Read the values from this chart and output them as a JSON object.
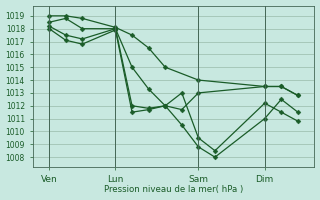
{
  "background_color": "#c8e8e0",
  "grid_color": "#99bbaa",
  "line_color": "#1a5c28",
  "xlabel": "Pression niveau de la mer( hPa )",
  "ylim": [
    1007.2,
    1019.8
  ],
  "yticks": [
    1008,
    1009,
    1010,
    1011,
    1012,
    1013,
    1014,
    1015,
    1016,
    1017,
    1018,
    1019
  ],
  "xtick_labels": [
    "Ven",
    "Lun",
    "Sam",
    "Dim"
  ],
  "xtick_positions": [
    1,
    5,
    10,
    14
  ],
  "vline_positions": [
    1,
    5,
    10,
    14
  ],
  "series": [
    {
      "x": [
        1,
        2,
        3,
        5,
        6,
        7,
        8,
        10,
        14,
        15,
        16
      ],
      "y": [
        1019.0,
        1019.0,
        1018.8,
        1018.1,
        1017.5,
        1016.5,
        1015.0,
        1014.0,
        1013.5,
        1013.5,
        1012.8
      ]
    },
    {
      "x": [
        1,
        2,
        3,
        5,
        6,
        7,
        8,
        9,
        10,
        14,
        15,
        16
      ],
      "y": [
        1018.5,
        1018.8,
        1018.0,
        1018.0,
        1015.0,
        1013.3,
        1012.0,
        1011.7,
        1013.0,
        1013.5,
        1013.5,
        1012.8
      ]
    },
    {
      "x": [
        1,
        2,
        3,
        5,
        6,
        7,
        8,
        9,
        10,
        11,
        14,
        15,
        16
      ],
      "y": [
        1018.2,
        1017.5,
        1017.2,
        1018.0,
        1012.0,
        1011.8,
        1012.0,
        1013.0,
        1009.5,
        1008.5,
        1012.2,
        1011.5,
        1010.8
      ]
    },
    {
      "x": [
        1,
        2,
        3,
        5,
        6,
        7,
        8,
        9,
        10,
        11,
        14,
        15,
        16
      ],
      "y": [
        1018.0,
        1017.1,
        1016.8,
        1017.9,
        1011.5,
        1011.7,
        1012.0,
        1010.5,
        1008.8,
        1008.0,
        1011.0,
        1012.5,
        1011.5
      ]
    }
  ],
  "xlim": [
    0,
    17
  ]
}
